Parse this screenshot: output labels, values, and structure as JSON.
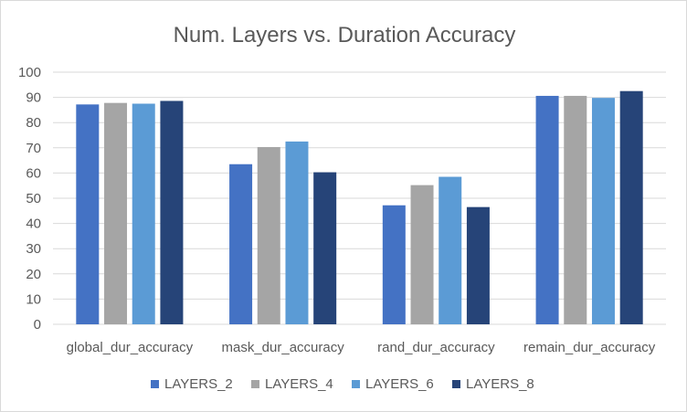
{
  "chart_data": {
    "type": "bar",
    "title": "Num. Layers vs. Duration Accuracy",
    "xlabel": "",
    "ylabel": "",
    "categories": [
      "global_dur_accuracy",
      "mask_dur_accuracy",
      "rand_dur_accuracy",
      "remain_dur_accuracy"
    ],
    "series": [
      {
        "name": "LAYERS_2",
        "color": "#4472c4",
        "values": [
          87.2,
          63.5,
          47.2,
          90.6
        ]
      },
      {
        "name": "LAYERS_4",
        "color": "#a5a5a5",
        "values": [
          87.8,
          70.3,
          55.2,
          90.6
        ]
      },
      {
        "name": "LAYERS_6",
        "color": "#5b9bd5",
        "values": [
          87.5,
          72.5,
          58.5,
          89.8
        ]
      },
      {
        "name": "LAYERS_8",
        "color": "#264478",
        "values": [
          88.6,
          60.3,
          46.5,
          92.5
        ]
      }
    ],
    "ylim": [
      0,
      100
    ],
    "yticks": [
      0,
      10,
      20,
      30,
      40,
      50,
      60,
      70,
      80,
      90,
      100
    ],
    "grid": true,
    "legend_position": "bottom"
  }
}
